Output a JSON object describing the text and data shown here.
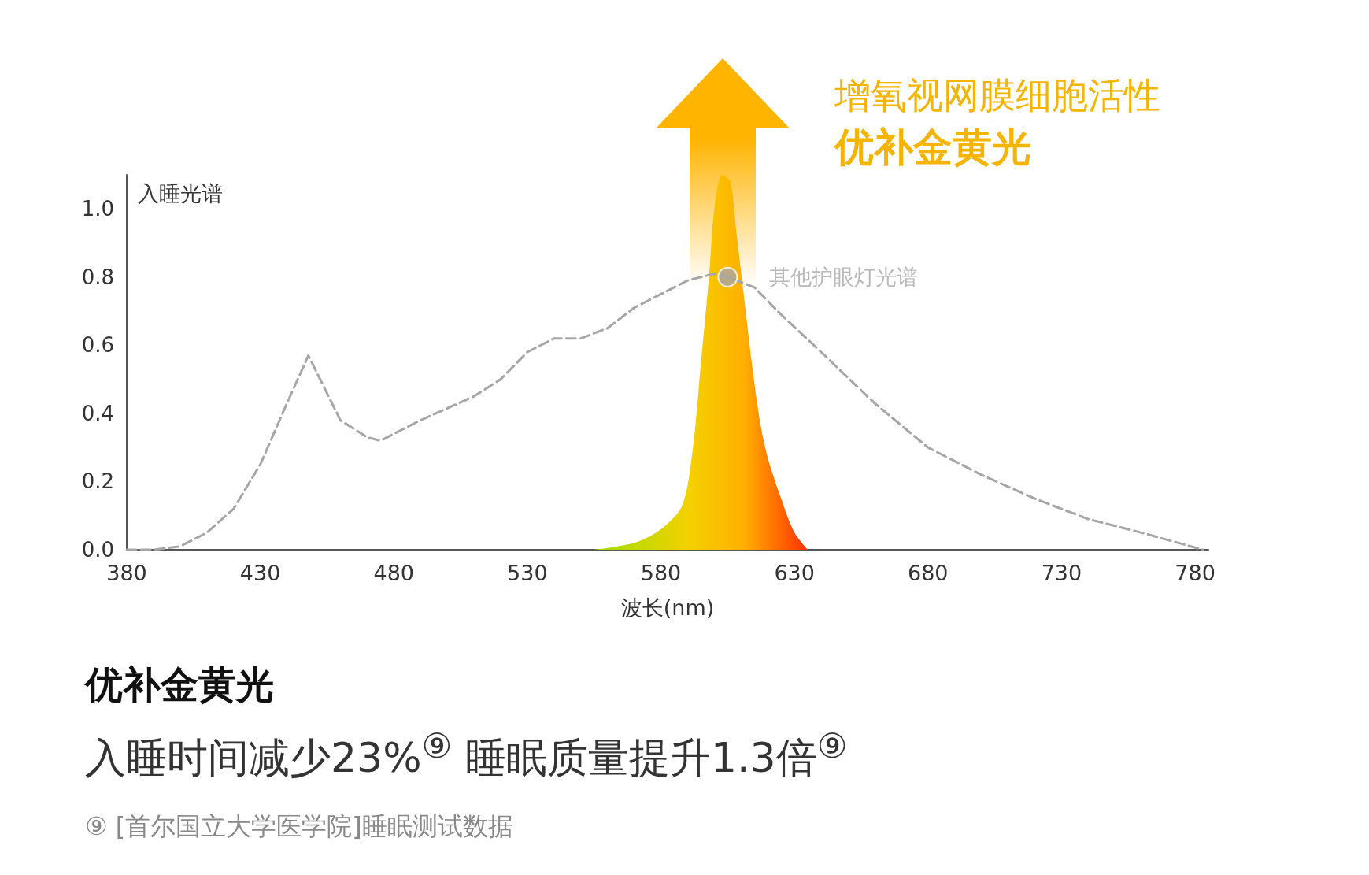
{
  "chart_data": {
    "type": "line",
    "title": "增氧视网膜细胞活性",
    "subtitle": "优补金黄光",
    "xlabel": "波长(nm)",
    "ylabel": "入睡光谱",
    "xlim": [
      380,
      785
    ],
    "xticks": [
      380,
      430,
      480,
      530,
      580,
      630,
      680,
      730,
      780
    ],
    "ylim": [
      0,
      1.1
    ],
    "yticks": [
      {
        "value": 0,
        "label": "0.0"
      },
      {
        "value": 0.2,
        "label": "0.2"
      },
      {
        "value": 0.4,
        "label": "0.4"
      },
      {
        "value": 0.6,
        "label": "0.6"
      },
      {
        "value": 0.8,
        "label": "0.8"
      },
      {
        "value": 1,
        "label": "1.0"
      }
    ],
    "grid": false,
    "series": [
      {
        "line_style": "dashed",
        "color": "#a6a6a6",
        "x": [
          380,
          390,
          400,
          410,
          420,
          430,
          440,
          448,
          460,
          470,
          475,
          490,
          510,
          520,
          530,
          540,
          550,
          560,
          570,
          580,
          590,
          600,
          605,
          615,
          625,
          640,
          660,
          680,
          700,
          720,
          740,
          760,
          783
        ],
        "values": [
          0.0,
          0.0,
          0.01,
          0.05,
          0.12,
          0.25,
          0.43,
          0.57,
          0.38,
          0.33,
          0.32,
          0.38,
          0.45,
          0.5,
          0.58,
          0.62,
          0.62,
          0.65,
          0.71,
          0.75,
          0.79,
          0.81,
          0.8,
          0.77,
          0.69,
          0.58,
          0.43,
          0.3,
          0.22,
          0.15,
          0.09,
          0.05,
          0.0
        ]
      },
      {
        "type": "area",
        "color": "#f5d000",
        "x": [
          555,
          570,
          580,
          588,
          592,
          595,
          598,
          600,
          603,
          606,
          608,
          611,
          614,
          617,
          620,
          625,
          630,
          635
        ],
        "values": [
          0,
          0.02,
          0.06,
          0.13,
          0.3,
          0.55,
          0.8,
          1.0,
          1.1,
          1.08,
          0.95,
          0.75,
          0.55,
          0.38,
          0.27,
          0.15,
          0.05,
          0
        ]
      }
    ],
    "annotations": [
      {
        "text": "其他护眼灯光谱",
        "x": 605,
        "y": 0.8
      },
      "优补金黄光",
      "入睡时间减少23%$^{⑨}$ 睡眠质量提升1.3倍$^{⑨}$",
      "⑨ [首尔国立大学医学院]睡眠测试数据"
    ]
  }
}
